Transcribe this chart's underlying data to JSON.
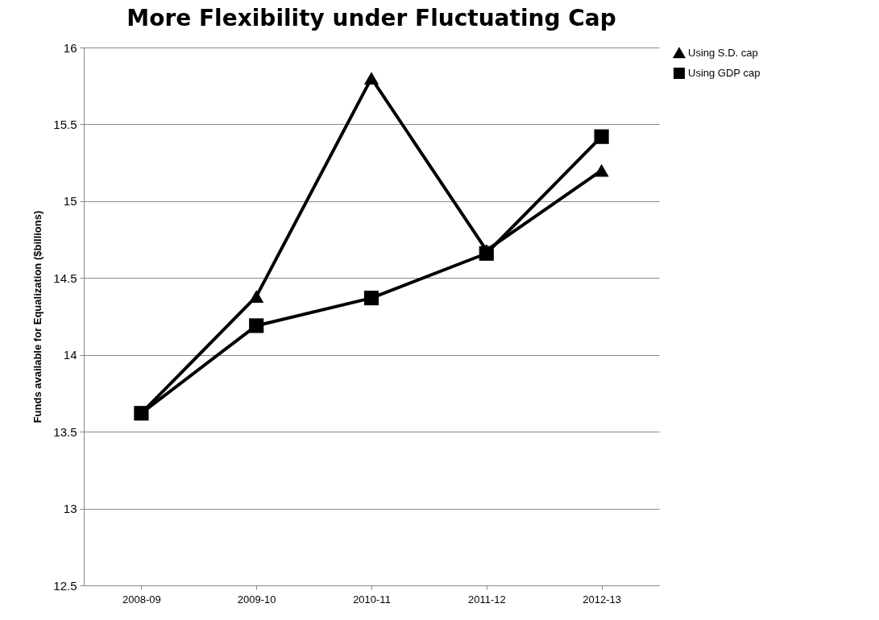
{
  "chart_data": {
    "type": "line",
    "title": "More Flexibility under Fluctuating Cap",
    "ylabel": "Funds available for Equalization  ($billions)",
    "categories": [
      "2008-09",
      "2009-10",
      "2010-11",
      "2011-12",
      "2012-13"
    ],
    "series": [
      {
        "name": "Using S.D. cap",
        "color": "#000000",
        "marker": "triangle",
        "values": [
          13.62,
          14.38,
          15.8,
          14.68,
          15.2
        ]
      },
      {
        "name": "Using GDP cap",
        "color": "#000000",
        "marker": "square",
        "values": [
          13.62,
          14.19,
          14.37,
          14.66,
          15.42
        ]
      }
    ],
    "ylim": [
      12.5,
      16
    ],
    "yticks": [
      12.5,
      13,
      13.5,
      14,
      14.5,
      15,
      15.5,
      16
    ],
    "grid": "y",
    "legend": "right",
    "line_style": "solid"
  }
}
